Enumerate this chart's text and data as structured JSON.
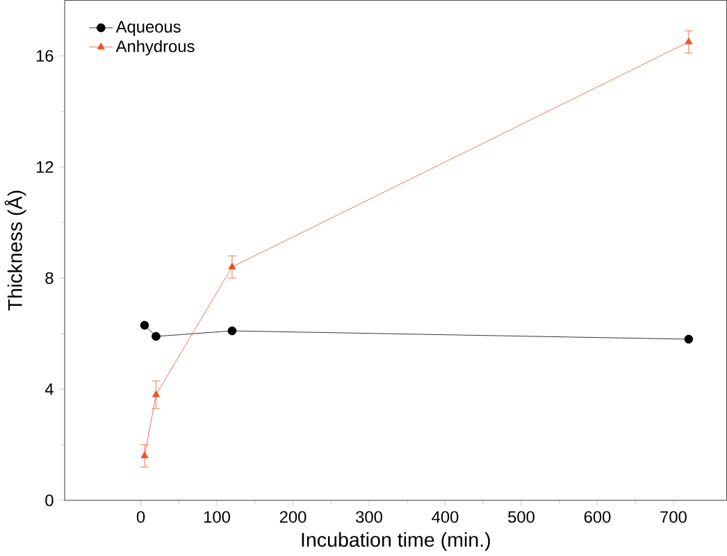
{
  "chart_data": {
    "type": "line",
    "xlabel": "Incubation time (min.)",
    "ylabel": "Thickness (Å)",
    "xlim": [
      -100,
      770
    ],
    "ylim": [
      0,
      18
    ],
    "xticks": [
      0,
      100,
      200,
      300,
      400,
      500,
      600,
      700
    ],
    "yticks": [
      0,
      4,
      8,
      12,
      16
    ],
    "legend": "top left",
    "grid": false,
    "series": [
      {
        "name": "Aqueous",
        "color": "#000000",
        "marker": "circle",
        "x": [
          5,
          20,
          120,
          720
        ],
        "values": [
          6.3,
          5.9,
          6.1,
          5.8
        ]
      },
      {
        "name": "Anhydrous",
        "color": "#e8542a",
        "marker": "triangle",
        "x": [
          5,
          20,
          120,
          720
        ],
        "values": [
          1.6,
          3.8,
          8.4,
          16.5
        ],
        "errors": [
          0.4,
          0.5,
          0.4,
          0.4
        ]
      }
    ]
  }
}
